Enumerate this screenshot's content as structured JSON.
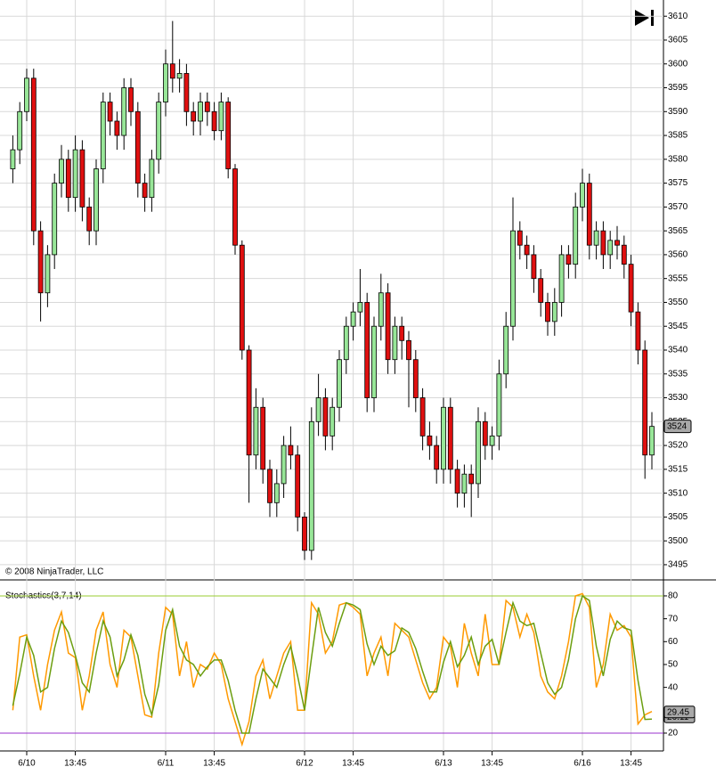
{
  "chart_data": [
    {
      "type": "candlestick",
      "annotation": "© 2008 NinjaTrader, LLC",
      "up_color": "#98e698",
      "down_color": "#e01010",
      "outline_color": "#000000",
      "open": [
        3578,
        3582,
        3590,
        3597,
        3565,
        3552,
        3560,
        3575,
        3580,
        3572,
        3582,
        3570,
        3565,
        3578,
        3592,
        3588,
        3585,
        3595,
        3590,
        3575,
        3572,
        3580,
        3592,
        3600,
        3597,
        3598,
        3590,
        3588,
        3592,
        3590,
        3586,
        3592,
        3578,
        3562,
        3540,
        3518,
        3528,
        3515,
        3508,
        3512,
        3520,
        3518,
        3505,
        3498,
        3525,
        3530,
        3522,
        3528,
        3538,
        3545,
        3548,
        3550,
        3530,
        3545,
        3552,
        3538,
        3545,
        3542,
        3538,
        3530,
        3522,
        3520,
        3515,
        3528,
        3515,
        3510,
        3514,
        3512,
        3525,
        3520,
        3522,
        3535,
        3545,
        3565,
        3562,
        3560,
        3555,
        3550,
        3546,
        3550,
        3560,
        3558,
        3570,
        3575,
        3562,
        3565,
        3560,
        3563,
        3562,
        3558,
        3548,
        3540,
        3518
      ],
      "high": [
        3585,
        3592,
        3599,
        3599,
        3567,
        3562,
        3577,
        3583,
        3582,
        3585,
        3584,
        3572,
        3580,
        3594,
        3594,
        3590,
        3597,
        3597,
        3592,
        3577,
        3582,
        3594,
        3603,
        3609,
        3601,
        3600,
        3592,
        3594,
        3594,
        3592,
        3594,
        3593,
        3579,
        3563,
        3541,
        3532,
        3530,
        3517,
        3515,
        3522,
        3524,
        3520,
        3506,
        3528,
        3535,
        3532,
        3530,
        3540,
        3547,
        3550,
        3557,
        3552,
        3547,
        3556,
        3554,
        3547,
        3547,
        3544,
        3540,
        3532,
        3525,
        3522,
        3530,
        3530,
        3517,
        3516,
        3516,
        3528,
        3527,
        3524,
        3538,
        3548,
        3572,
        3567,
        3564,
        3562,
        3557,
        3552,
        3553,
        3562,
        3562,
        3573,
        3578,
        3577,
        3567,
        3567,
        3565,
        3566,
        3564,
        3560,
        3550,
        3542,
        3527
      ],
      "low": [
        3575,
        3579,
        3588,
        3562,
        3546,
        3549,
        3557,
        3572,
        3569,
        3569,
        3567,
        3562,
        3562,
        3575,
        3585,
        3582,
        3582,
        3587,
        3572,
        3569,
        3569,
        3577,
        3589,
        3594,
        3594,
        3587,
        3585,
        3585,
        3587,
        3584,
        3584,
        3576,
        3560,
        3538,
        3508,
        3515,
        3512,
        3505,
        3505,
        3509,
        3515,
        3502,
        3496,
        3496,
        3522,
        3519,
        3519,
        3525,
        3535,
        3542,
        3545,
        3527,
        3527,
        3542,
        3535,
        3535,
        3538,
        3528,
        3527,
        3519,
        3517,
        3512,
        3512,
        3512,
        3507,
        3507,
        3505,
        3509,
        3517,
        3517,
        3519,
        3532,
        3542,
        3559,
        3557,
        3552,
        3547,
        3543,
        3543,
        3547,
        3555,
        3555,
        3567,
        3559,
        3559,
        3557,
        3557,
        3559,
        3555,
        3545,
        3537,
        3513,
        3515
      ],
      "close": [
        3582,
        3590,
        3597,
        3565,
        3552,
        3560,
        3575,
        3580,
        3572,
        3582,
        3570,
        3565,
        3578,
        3592,
        3588,
        3585,
        3595,
        3590,
        3575,
        3572,
        3580,
        3592,
        3600,
        3597,
        3598,
        3590,
        3588,
        3592,
        3590,
        3586,
        3592,
        3578,
        3562,
        3540,
        3518,
        3528,
        3515,
        3508,
        3512,
        3520,
        3518,
        3505,
        3498,
        3525,
        3530,
        3522,
        3528,
        3538,
        3545,
        3548,
        3550,
        3530,
        3545,
        3552,
        3538,
        3545,
        3542,
        3538,
        3530,
        3522,
        3520,
        3515,
        3528,
        3515,
        3510,
        3514,
        3512,
        3525,
        3520,
        3522,
        3535,
        3545,
        3565,
        3562,
        3560,
        3555,
        3550,
        3546,
        3550,
        3560,
        3558,
        3570,
        3575,
        3562,
        3565,
        3560,
        3563,
        3562,
        3558,
        3548,
        3540,
        3518,
        3524
      ],
      "ylim": [
        3492,
        3613.4
      ],
      "yticks": [
        3495,
        3500,
        3505,
        3510,
        3515,
        3520,
        3525,
        3530,
        3535,
        3540,
        3545,
        3550,
        3555,
        3560,
        3565,
        3570,
        3575,
        3580,
        3585,
        3590,
        3595,
        3600,
        3605,
        3610
      ],
      "grid": true
    },
    {
      "type": "line",
      "title": "Stochastics(3,7,14)",
      "categories": [
        null,
        null,
        "6/10",
        null,
        null,
        null,
        null,
        null,
        null,
        "13:45",
        null,
        null,
        null,
        null,
        null,
        null,
        null,
        null,
        null,
        null,
        null,
        null,
        "6/11",
        null,
        null,
        null,
        null,
        null,
        null,
        "13:45",
        null,
        null,
        null,
        null,
        null,
        null,
        null,
        null,
        null,
        null,
        null,
        null,
        "6/12",
        null,
        null,
        null,
        null,
        null,
        null,
        "13:45",
        null,
        null,
        null,
        null,
        null,
        null,
        null,
        null,
        null,
        null,
        null,
        null,
        "6/13",
        null,
        null,
        null,
        null,
        null,
        null,
        "13:45",
        null,
        null,
        null,
        null,
        null,
        null,
        null,
        null,
        null,
        null,
        null,
        null,
        "6/16",
        null,
        null,
        null,
        null,
        null,
        null,
        "13:45",
        null,
        null,
        null
      ],
      "series": [
        {
          "color": "#ff9900",
          "values": [
            30,
            62,
            63,
            45,
            30,
            50,
            65,
            73,
            55,
            53,
            30,
            45,
            65,
            73,
            50,
            40,
            65,
            62,
            45,
            28,
            27,
            55,
            75,
            72,
            45,
            60,
            40,
            50,
            48,
            55,
            50,
            35,
            25,
            15,
            25,
            45,
            52,
            35,
            45,
            55,
            60,
            30,
            30,
            77,
            72,
            55,
            60,
            76,
            77,
            75,
            72,
            45,
            55,
            62,
            45,
            68,
            65,
            62,
            52,
            42,
            35,
            40,
            62,
            58,
            40,
            68,
            55,
            45,
            72,
            50,
            50,
            78,
            75,
            62,
            72,
            64,
            45,
            38,
            35,
            45,
            60,
            80,
            81,
            75,
            40,
            50,
            72,
            65,
            67,
            62,
            24,
            28,
            29.45
          ]
        },
        {
          "color": "#6b9e10",
          "values": [
            32,
            46,
            62,
            54,
            38,
            40,
            57,
            69,
            64,
            54,
            42,
            38,
            55,
            69,
            62,
            45,
            52,
            63,
            54,
            37,
            28,
            41,
            65,
            74,
            58,
            52,
            50,
            45,
            49,
            52,
            52,
            43,
            30,
            20,
            20,
            35,
            48,
            44,
            40,
            50,
            58,
            45,
            30,
            53,
            75,
            64,
            58,
            68,
            77,
            76,
            74,
            59,
            50,
            58,
            54,
            56,
            66,
            64,
            57,
            47,
            38,
            38,
            51,
            60,
            49,
            54,
            62,
            50,
            58,
            61,
            50,
            64,
            77,
            69,
            67,
            68,
            55,
            42,
            37,
            40,
            52,
            70,
            80,
            78,
            58,
            45,
            61,
            69,
            66,
            65,
            43,
            26,
            26.11
          ]
        }
      ],
      "hlines": [
        {
          "value": 80,
          "color": "#9acd32"
        },
        {
          "value": 20,
          "color": "#9932cc"
        }
      ],
      "ylim": [
        12.2,
        86.6
      ],
      "yticks": [
        20,
        30,
        40,
        50,
        60,
        70,
        80
      ]
    }
  ]
}
